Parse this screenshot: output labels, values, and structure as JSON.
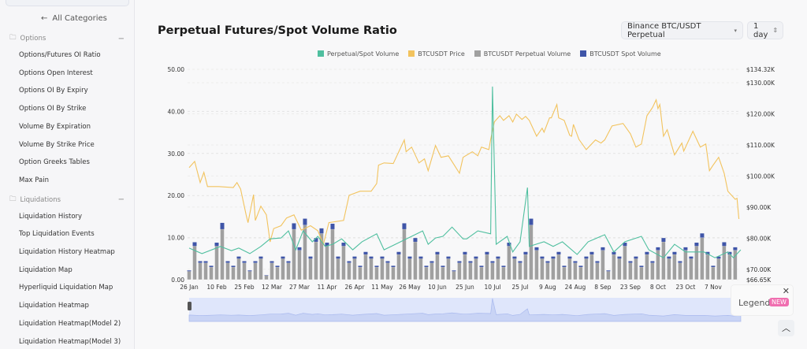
{
  "sidebar": {
    "back_label": "All Categories",
    "groups": [
      {
        "label": "Options",
        "items": [
          "Options/Futures OI Ratio",
          "Options Open Interest",
          "Options OI By Expiry",
          "Options OI By Strike",
          "Volume By Expiration",
          "Volume By Strike Price",
          "Option Greeks Tables",
          "Max Pain"
        ]
      },
      {
        "label": "Liquidations",
        "items": [
          "Liquidation History",
          "Top Liquidation Events",
          "Liquidation History Heatmap",
          "Liquidation Map",
          "Hyperliquid Liquidation Map",
          "Liquidation Heatmap",
          "Liquidation Heatmap(Model 2)",
          "Liquidation Heatmap(Model 3)"
        ]
      }
    ]
  },
  "header": {
    "title": "Perpetual Futures/Spot Volume Ratio",
    "exchange_select": "Binance BTC/USDT Perpetual",
    "interval_select": "1 day"
  },
  "legend_popup": {
    "label": "Legend",
    "badge": "NEW"
  },
  "colors": {
    "ratio": "#4fbf9f",
    "price": "#f2c35e",
    "perp": "#a0a0a0",
    "spot": "#3f55a8",
    "navigator": "#dfe6fb"
  },
  "chart_data": {
    "type": "line+bar",
    "legend_position": "top",
    "grid": true,
    "interval": "1 day",
    "x_ticks": [
      "26 Jan",
      "10 Feb",
      "25 Feb",
      "12 Mar",
      "27 Mar",
      "11 Apr",
      "26 Apr",
      "11 May",
      "26 May",
      "10 Jun",
      "25 Jun",
      "10 Jul",
      "25 Jul",
      "9 Aug",
      "24 Aug",
      "8 Sep",
      "23 Sep",
      "8 Oct",
      "23 Oct",
      "7 Nov"
    ],
    "y_left": {
      "ticks": [
        "0.00",
        "10.00",
        "20.00",
        "30.00",
        "40.00",
        "50.00"
      ],
      "range": [
        0,
        50
      ]
    },
    "y_right": {
      "ticks": [
        "$66.65K",
        "$70.00K",
        "$80.00K",
        "$90.00K",
        "$100.00K",
        "$110.00K",
        "$120.00K",
        "$130.00K",
        "$134.32K"
      ],
      "range": [
        66.65,
        134.32
      ],
      "unit": "K USD"
    },
    "series": [
      {
        "name": "Perpetual/Spot Volume",
        "axis": "left",
        "type": "line",
        "points": [
          [
            "26 Jan",
            7.5
          ],
          [
            "2 Feb",
            6.2
          ],
          [
            "12 Feb",
            7.9
          ],
          [
            "18 Feb",
            6.9
          ],
          [
            "22 Feb",
            7.5
          ],
          [
            "28 Feb",
            6.2
          ],
          [
            "6 Mar",
            7.9
          ],
          [
            "11 Mar",
            9.7
          ],
          [
            "17 Mar",
            9.9
          ],
          [
            "21 Mar",
            11.6
          ],
          [
            "25 Mar",
            7.1
          ],
          [
            "29 Mar",
            11.6
          ],
          [
            "3 Apr",
            9.0
          ],
          [
            "6 Apr",
            10.3
          ],
          [
            "10 Apr",
            7.9
          ],
          [
            "14 Apr",
            8.4
          ],
          [
            "19 Apr",
            9.7
          ],
          [
            "25 Apr",
            7.1
          ],
          [
            "30 Apr",
            9.0
          ],
          [
            "8 May",
            10.9
          ],
          [
            "12 May",
            7.1
          ],
          [
            "20 May",
            8.8
          ],
          [
            "27 May",
            10.3
          ],
          [
            "2 Jun",
            11.6
          ],
          [
            "5 Jun",
            8.4
          ],
          [
            "9 Jun",
            9.9
          ],
          [
            "13 Jun",
            10.3
          ],
          [
            "18 Jun",
            12.5
          ],
          [
            "24 Jun",
            9.7
          ],
          [
            "26 Jun",
            9.7
          ],
          [
            "2 Jul",
            11.6
          ],
          [
            "9 Jul",
            10.9
          ],
          [
            "10 Jul",
            45.9
          ],
          [
            "12 Jul",
            8.4
          ],
          [
            "18 Jul",
            10.3
          ],
          [
            "21 Jul",
            6.6
          ],
          [
            "25 Jul",
            9.0
          ],
          [
            "29 Jul",
            21.9
          ],
          [
            "30 Jul",
            7.9
          ],
          [
            "7 Aug",
            9.0
          ],
          [
            "12 Aug",
            7.9
          ],
          [
            "17 Aug",
            9.0
          ],
          [
            "25 Aug",
            6.0
          ],
          [
            "31 Aug",
            9.0
          ],
          [
            "9 Sep",
            10.7
          ],
          [
            "14 Sep",
            6.6
          ],
          [
            "20 Sep",
            9.0
          ],
          [
            "29 Sep",
            10.3
          ],
          [
            "3 Oct",
            7.1
          ],
          [
            "11 Oct",
            5.2
          ],
          [
            "17 Oct",
            8.4
          ],
          [
            "23 Oct",
            6.6
          ],
          [
            "2 Nov",
            6.6
          ],
          [
            "8 Nov",
            5.2
          ],
          [
            "15 Nov",
            6.6
          ],
          [
            "18 Nov",
            5.2
          ],
          [
            "22 Nov",
            7.1
          ]
        ]
      },
      {
        "name": "BTCUSDT Price",
        "axis": "right",
        "type": "line",
        "points": [
          [
            "26 Jan",
            102.7
          ],
          [
            "29 Jan",
            104.7
          ],
          [
            "1 Feb",
            97.9
          ],
          [
            "3 Feb",
            101.2
          ],
          [
            "5 Feb",
            96.6
          ],
          [
            "11 Feb",
            96.6
          ],
          [
            "19 Feb",
            96.3
          ],
          [
            "21 Feb",
            97.9
          ],
          [
            "23 Feb",
            95.8
          ],
          [
            "26 Feb",
            87.5
          ],
          [
            "27 Feb",
            85.0
          ],
          [
            "2 Mar",
            94.0
          ],
          [
            "3 Mar",
            85.7
          ],
          [
            "6 Mar",
            90.3
          ],
          [
            "9 Mar",
            87.5
          ],
          [
            "11 Mar",
            78.8
          ],
          [
            "13 Mar",
            83.1
          ],
          [
            "17 Mar",
            84.0
          ],
          [
            "20 Mar",
            86.5
          ],
          [
            "24 Mar",
            87.5
          ],
          [
            "28 Mar",
            82.6
          ],
          [
            "2 Apr",
            84.0
          ],
          [
            "6 Apr",
            82.4
          ],
          [
            "9 Apr",
            78.0
          ],
          [
            "12 Apr",
            85.0
          ],
          [
            "20 Apr",
            85.7
          ],
          [
            "23 Apr",
            93.8
          ],
          [
            "29 Apr",
            95.1
          ],
          [
            "5 May",
            95.1
          ],
          [
            "8 May",
            97.6
          ],
          [
            "9 May",
            103.5
          ],
          [
            "12 May",
            104.2
          ],
          [
            "17 May",
            104.0
          ],
          [
            "19 May",
            106.5
          ],
          [
            "23 May",
            111.6
          ],
          [
            "24 May",
            107.8
          ],
          [
            "27 May",
            109.3
          ],
          [
            "31 May",
            104.2
          ],
          [
            "3 Jun",
            105.5
          ],
          [
            "5 Jun",
            101.7
          ],
          [
            "9 Jun",
            109.8
          ],
          [
            "12 Jun",
            106.0
          ],
          [
            "16 Jun",
            106.5
          ],
          [
            "22 Jun",
            100.9
          ],
          [
            "24 Jun",
            106.0
          ],
          [
            "29 Jun",
            107.8
          ],
          [
            "2 Jul",
            106.5
          ],
          [
            "4 Jul",
            109.3
          ],
          [
            "8 Jul",
            108.5
          ],
          [
            "9 Jul",
            111.8
          ],
          [
            "11 Jul",
            117.4
          ],
          [
            "14 Jul",
            119.4
          ],
          [
            "16 Jul",
            117.9
          ],
          [
            "19 Jul",
            119.4
          ],
          [
            "21 Jul",
            117.4
          ],
          [
            "23 Jul",
            119.9
          ],
          [
            "26 Jul",
            118.2
          ],
          [
            "28 Jul",
            119.2
          ],
          [
            "30 Jul",
            117.9
          ],
          [
            "3 Aug",
            112.8
          ],
          [
            "6 Aug",
            115.4
          ],
          [
            "7 Aug",
            114.1
          ],
          [
            "10 Aug",
            118.7
          ],
          [
            "11 Aug",
            118.7
          ],
          [
            "14 Aug",
            123.0
          ],
          [
            "15 Aug",
            118.7
          ],
          [
            "18 Aug",
            117.9
          ],
          [
            "21 Aug",
            113.1
          ],
          [
            "22 Aug",
            112.8
          ],
          [
            "23 Aug",
            116.6
          ],
          [
            "26 Aug",
            111.8
          ],
          [
            "30 Aug",
            108.5
          ],
          [
            "4 Sep",
            111.6
          ],
          [
            "7 Sep",
            110.6
          ],
          [
            "9 Sep",
            111.6
          ],
          [
            "13 Sep",
            116.1
          ],
          [
            "19 Sep",
            116.9
          ],
          [
            "23 Sep",
            113.6
          ],
          [
            "26 Sep",
            109.3
          ],
          [
            "29 Sep",
            110.3
          ],
          [
            "2 Oct",
            119.4
          ],
          [
            "5 Oct",
            122.0
          ],
          [
            "7 Oct",
            124.5
          ],
          [
            "8 Oct",
            121.7
          ],
          [
            "9 Oct",
            123.0
          ],
          [
            "11 Oct",
            112.8
          ],
          [
            "13 Oct",
            114.9
          ],
          [
            "17 Oct",
            106.8
          ],
          [
            "21 Oct",
            110.6
          ],
          [
            "22 Oct",
            108.0
          ],
          [
            "27 Oct",
            114.4
          ],
          [
            "31 Oct",
            109.3
          ],
          [
            "3 Nov",
            110.3
          ],
          [
            "5 Nov",
            101.7
          ],
          [
            "7 Nov",
            103.5
          ],
          [
            "10 Nov",
            106.0
          ],
          [
            "13 Nov",
            100.9
          ],
          [
            "15 Nov",
            95.1
          ],
          [
            "19 Nov",
            92.5
          ],
          [
            "20 Nov",
            92.8
          ],
          [
            "21 Nov",
            86.2
          ]
        ]
      },
      {
        "name": "BTCUSDT Perpetual Volume",
        "type": "bar",
        "stacked": true,
        "start": "26 Jan",
        "step_days": 3,
        "values": [
          2,
          8,
          4,
          4,
          3,
          8,
          12,
          4,
          3,
          5,
          4,
          2,
          4,
          5,
          1,
          4,
          3,
          5,
          4,
          12,
          7,
          13,
          5,
          9,
          11,
          8,
          12,
          5,
          8,
          4,
          5,
          3,
          6,
          5,
          3,
          5,
          4,
          3,
          6,
          12,
          5,
          9,
          5,
          3,
          4,
          6,
          3,
          5,
          2,
          4,
          6,
          4,
          5,
          3,
          6,
          4,
          5,
          3,
          8,
          5,
          4,
          6,
          13,
          7,
          5,
          4,
          5,
          6,
          3,
          5,
          4,
          3,
          5,
          6,
          4,
          7,
          2,
          6,
          5,
          8,
          4,
          5,
          3,
          6,
          4,
          7,
          9,
          5,
          6,
          4,
          7,
          5,
          8,
          10,
          6,
          3,
          5,
          8,
          6,
          7
        ]
      },
      {
        "name": "BTCUSDT Spot Volume",
        "type": "bar",
        "stacked": true,
        "start": "26 Jan",
        "step_days": 3,
        "values": [
          0.2,
          0.9,
          0.4,
          0.4,
          0.3,
          0.8,
          1.5,
          0.4,
          0.3,
          0.5,
          0.4,
          0.2,
          0.4,
          0.5,
          0.1,
          0.4,
          0.3,
          0.5,
          0.4,
          1.4,
          0.7,
          1.5,
          0.5,
          0.9,
          1.2,
          0.8,
          1.3,
          0.5,
          0.8,
          0.4,
          0.5,
          0.3,
          0.6,
          0.5,
          0.3,
          0.5,
          0.4,
          0.3,
          0.6,
          1.4,
          0.5,
          0.9,
          0.5,
          0.3,
          0.4,
          0.6,
          0.3,
          0.5,
          0.2,
          0.4,
          0.6,
          0.4,
          0.5,
          0.3,
          0.6,
          0.4,
          0.5,
          0.3,
          0.8,
          0.5,
          0.4,
          0.6,
          1.5,
          0.7,
          0.5,
          0.4,
          0.5,
          0.6,
          0.3,
          0.5,
          0.4,
          0.3,
          0.5,
          0.6,
          0.4,
          0.7,
          0.2,
          0.6,
          0.5,
          0.8,
          0.4,
          0.5,
          0.3,
          0.6,
          0.4,
          0.7,
          0.9,
          0.5,
          0.6,
          0.4,
          0.7,
          0.5,
          0.8,
          1.0,
          0.6,
          0.3,
          0.5,
          0.9,
          0.6,
          0.7
        ]
      }
    ]
  }
}
